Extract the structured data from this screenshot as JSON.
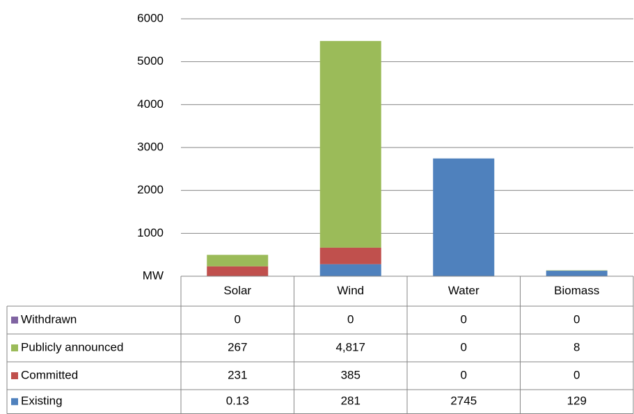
{
  "chart_data": {
    "type": "bar",
    "stacked": true,
    "categories": [
      "Solar",
      "Wind",
      "Water",
      "Biomass"
    ],
    "series": [
      {
        "name": "Existing",
        "color": "#4f81bd",
        "values": [
          0.13,
          281,
          2745,
          129
        ]
      },
      {
        "name": "Committed",
        "color": "#c0504d",
        "values": [
          231,
          385,
          0,
          0
        ]
      },
      {
        "name": "Publicly announced",
        "color": "#9bbb59",
        "values": [
          267,
          4817,
          0,
          8
        ],
        "value_labels": [
          "267",
          "4,817",
          "0",
          "8"
        ]
      },
      {
        "name": "Withdrawn",
        "color": "#8064a2",
        "values": [
          0,
          0,
          0,
          0
        ]
      }
    ],
    "ylim": [
      0,
      6000
    ],
    "yticks": [
      {
        "value": 0,
        "label": "MW"
      },
      1000,
      2000,
      3000,
      4000,
      5000,
      6000
    ],
    "grid": true,
    "data_table": true
  }
}
